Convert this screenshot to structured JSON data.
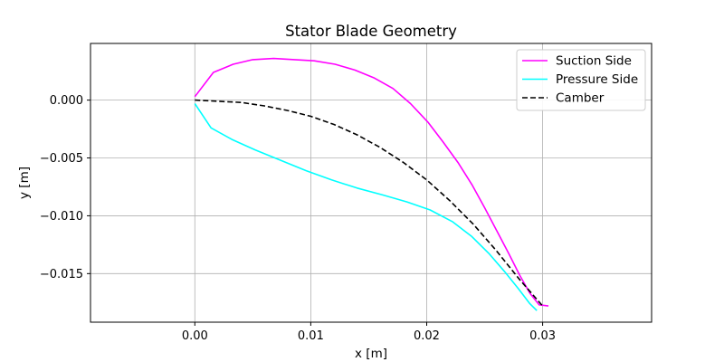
{
  "chart_data": {
    "type": "line",
    "title": "Stator Blade Geometry",
    "xlabel": "x [m]",
    "ylabel": "y [m]",
    "xlim": [
      -0.009,
      0.0394
    ],
    "ylim": [
      -0.0192,
      0.0049
    ],
    "xticks": [
      0.0,
      0.01,
      0.02,
      0.03
    ],
    "xtick_labels": [
      "0.00",
      "0.01",
      "0.02",
      "0.03"
    ],
    "yticks": [
      0.0,
      -0.005,
      -0.01,
      -0.015
    ],
    "ytick_labels": [
      "0.000",
      "−0.005",
      "−0.010",
      "−0.015"
    ],
    "grid": true,
    "legend_position": "top-right",
    "series": [
      {
        "name": "Suction Side",
        "color": "#ff00ff",
        "dash": "solid",
        "x": [
          0.0,
          0.0016,
          0.0033,
          0.005,
          0.0068,
          0.0086,
          0.0103,
          0.0121,
          0.0138,
          0.0155,
          0.0171,
          0.0186,
          0.0201,
          0.0214,
          0.0227,
          0.0239,
          0.025,
          0.0261,
          0.0271,
          0.028,
          0.0289,
          0.0297,
          0.0305
        ],
        "y": [
          0.0003,
          0.0024,
          0.0031,
          0.0035,
          0.0036,
          0.0035,
          0.0034,
          0.0031,
          0.0026,
          0.0019,
          0.001,
          -0.0003,
          -0.0019,
          -0.0036,
          -0.0054,
          -0.0073,
          -0.0093,
          -0.0114,
          -0.0133,
          -0.0151,
          -0.0167,
          -0.0177,
          -0.0178
        ]
      },
      {
        "name": "Pressure Side",
        "color": "#00ffff",
        "dash": "solid",
        "x": [
          0.0,
          0.0014,
          0.0032,
          0.0052,
          0.0074,
          0.0096,
          0.0118,
          0.014,
          0.0162,
          0.0183,
          0.0203,
          0.0222,
          0.0239,
          0.0254,
          0.0267,
          0.0279,
          0.0289,
          0.0295
        ],
        "y": [
          -0.0003,
          -0.0024,
          -0.0034,
          -0.0043,
          -0.0052,
          -0.0061,
          -0.0069,
          -0.0076,
          -0.0082,
          -0.0088,
          -0.0095,
          -0.0105,
          -0.0118,
          -0.0133,
          -0.0148,
          -0.0163,
          -0.0176,
          -0.0182
        ]
      },
      {
        "name": "Camber",
        "color": "#000000",
        "dash": "dashed",
        "x": [
          0.0,
          0.002,
          0.004,
          0.006,
          0.008,
          0.01,
          0.012,
          0.014,
          0.016,
          0.018,
          0.02,
          0.022,
          0.024,
          0.026,
          0.028,
          0.03
        ],
        "y": [
          0.0,
          -0.0001,
          -0.0002,
          -0.0005,
          -0.0009,
          -0.0014,
          -0.0021,
          -0.003,
          -0.0041,
          -0.0054,
          -0.0069,
          -0.0087,
          -0.0107,
          -0.013,
          -0.0155,
          -0.0178
        ]
      }
    ]
  }
}
